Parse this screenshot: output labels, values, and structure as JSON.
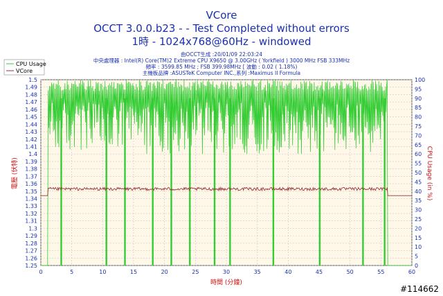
{
  "header": {
    "title_line1": "VCore",
    "title_line2": "OCCT 3.0.0.b23 -   - Test Completed without errors",
    "title_line3": "1時 - 1024x768@60Hz - windowed",
    "info_line1": "由OCCT生成 :20/01/09 22:03:24",
    "info_line2": "中央處理器 : Intel(R) Core(TM)2 Extreme CPU X9650 @ 3.00GHz ( Yorkfield ) 3000 MHz FSB 333MHz",
    "info_line3": "頻率 : 3599.85 MHz ; FSB 399.98MHz [ 波動 : 0.02 ( 1.18%)",
    "info_line4": "主機板品牌 :ASUSTeK Computer INC.,系列 :Maximus II Formula"
  },
  "watermark": "#114662",
  "colors": {
    "cpu_usage": "#33cc33",
    "vcore": "#993333",
    "plot_bg": "#fff8e8",
    "grid": "#c8c8c8",
    "text": "#1a2fb0",
    "axis_label": "#d01010"
  },
  "chart_data": {
    "type": "line",
    "xlabel": "時間 (分鐘)",
    "ylabel": "電壓 (伏特)",
    "y2label": "CPU Usage (in %)",
    "xlim": [
      0,
      60
    ],
    "ylim": [
      1.25,
      1.5
    ],
    "y2lim": [
      0,
      100
    ],
    "x_ticks": [
      0,
      5,
      10,
      15,
      20,
      25,
      30,
      35,
      40,
      45,
      50,
      55,
      60
    ],
    "y_ticks": [
      1.25,
      1.26,
      1.27,
      1.28,
      1.29,
      1.3,
      1.31,
      1.32,
      1.33,
      1.34,
      1.35,
      1.36,
      1.37,
      1.38,
      1.39,
      1.4,
      1.41,
      1.42,
      1.43,
      1.44,
      1.45,
      1.46,
      1.47,
      1.48,
      1.49,
      1.5
    ],
    "y2_ticks": [
      0,
      5,
      10,
      15,
      20,
      25,
      30,
      35,
      40,
      45,
      50,
      55,
      60,
      65,
      70,
      75,
      80,
      85,
      90,
      95,
      100
    ],
    "grid": true,
    "legend_position": "top-left",
    "series": [
      {
        "name": "CPU Usage",
        "axis": "right",
        "description_points": [
          [
            0,
            0
          ],
          [
            1.1,
            0
          ],
          [
            1.2,
            100
          ],
          [
            56,
            100
          ],
          [
            56.1,
            0
          ],
          [
            60,
            0
          ]
        ],
        "fluctuation_range": [
          60,
          100
        ],
        "dropouts_to_zero_at": [
          3.3,
          10.6,
          13.6,
          18.1,
          21.1,
          24.1,
          28.1,
          30.6,
          37.6,
          45.1,
          52.1,
          55.6
        ]
      },
      {
        "name": "VCore",
        "axis": "left",
        "description_points": [
          [
            0,
            1.344
          ],
          [
            1.1,
            1.344
          ],
          [
            1.2,
            1.355
          ],
          [
            56,
            1.355
          ],
          [
            56.1,
            1.344
          ],
          [
            60,
            1.344
          ]
        ],
        "fluctuation_range": [
          1.351,
          1.355
        ]
      }
    ]
  }
}
